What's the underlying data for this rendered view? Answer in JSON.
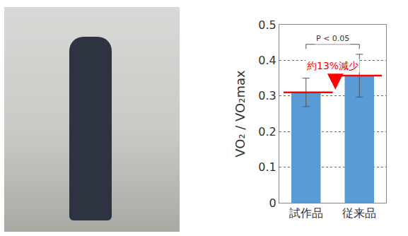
{
  "chart_data": {
    "type": "bar",
    "categories": [
      "試作品",
      "従来品"
    ],
    "values": [
      0.31,
      0.357
    ],
    "errors": [
      0.04,
      0.06
    ],
    "color": "#5b9bd5",
    "y_label": "VO₂ / VO₂max",
    "ylim": [
      0,
      0.5
    ],
    "yticks": [
      0,
      0.1,
      0.2,
      0.3,
      0.4,
      0.5
    ],
    "grid": true,
    "annotations": [
      "P < 0.05",
      "約13%減少"
    ]
  }
}
